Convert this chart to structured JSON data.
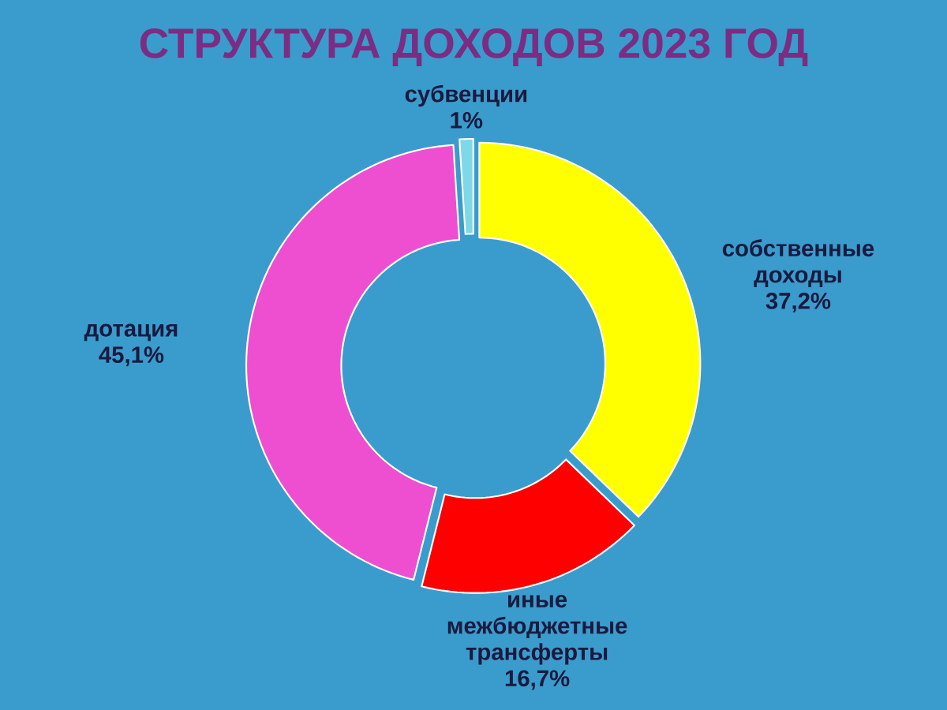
{
  "chart_data": {
    "type": "donut",
    "title": "СТРУКТУРА ДОХОДОВ 2023 ГОД",
    "categories": [
      "собственные доходы",
      "иные межбюджетные трансферты",
      "дотация",
      "субвенции"
    ],
    "values": [
      37.2,
      16.7,
      45.1,
      1
    ],
    "colors": [
      "#ffff00",
      "#ff0000",
      "#ee4fd0",
      "#7fd8e8"
    ],
    "value_labels": [
      "37,2%",
      "16,7%",
      "45,1%",
      "1%"
    ]
  }
}
